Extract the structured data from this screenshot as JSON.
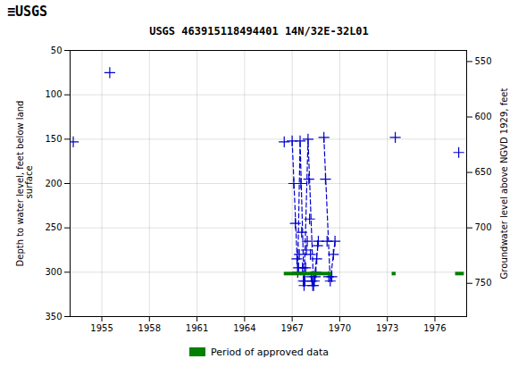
{
  "chart_data": {
    "type": "scatter",
    "title": "USGS 463915118494401 14N/32E-32L01",
    "annotations": [
      "≡USGS"
    ],
    "ylabel": "Depth to water level, feet below land\n surface",
    "y2label": "Groundwater level above NGVD 1929, feet",
    "xlim": [
      1953,
      1978
    ],
    "xticks": [
      1955,
      1958,
      1961,
      1964,
      1967,
      1970,
      1973,
      1976
    ],
    "ylim": [
      50,
      350
    ],
    "yticks": [
      50,
      100,
      150,
      200,
      250,
      300,
      350
    ],
    "y2lim": [
      540,
      780
    ],
    "y2ticks": [
      550,
      600,
      650,
      700,
      750
    ],
    "grid": true,
    "legend": "bottom",
    "series": [
      {
        "type": "scatter",
        "color": "#0000cc",
        "marker": "plus",
        "x": [
          1955.5,
          1953.2,
          1966.5,
          1967.0,
          1967.1,
          1967.2,
          1967.3,
          1967.35,
          1967.4,
          1967.45,
          1967.5,
          1967.55,
          1967.6,
          1967.65,
          1967.7,
          1967.75,
          1967.8,
          1967.85,
          1967.9,
          1967.95,
          1968.0,
          1968.05,
          1968.1,
          1968.15,
          1968.2,
          1968.25,
          1968.3,
          1968.35,
          1968.4,
          1968.45,
          1968.5,
          1968.55,
          1968.6,
          1968.65,
          1969.0,
          1969.1,
          1969.2,
          1969.3,
          1969.4,
          1969.5,
          1969.6,
          1969.7,
          1973.5,
          1977.5
        ],
        "values": [
          75,
          153,
          153,
          152,
          200,
          245,
          285,
          300,
          295,
          280,
          152,
          200,
          255,
          295,
          310,
          315,
          310,
          295,
          275,
          265,
          150,
          195,
          240,
          280,
          305,
          310,
          315,
          315,
          310,
          305,
          300,
          285,
          270,
          265,
          148,
          195,
          265,
          305,
          310,
          305,
          280,
          265,
          148,
          165
        ]
      },
      {
        "type": "line",
        "color": "#0000cc",
        "line_style": "dashed",
        "x": [
          1967.0,
          1967.35,
          1967.5,
          1967.75,
          1968.0,
          1968.35,
          1968.65
        ],
        "values": [
          152,
          300,
          152,
          315,
          150,
          315,
          265
        ]
      },
      {
        "type": "line",
        "color": "#0000cc",
        "line_style": "dashed",
        "x": [
          1969.0,
          1969.4,
          1969.7
        ],
        "values": [
          148,
          310,
          265
        ]
      },
      {
        "type": "range",
        "name": "Period of approved data",
        "color": "#008000",
        "x_ranges": [
          [
            1966.5,
            1969.5
          ],
          [
            1973.3,
            1973.55
          ],
          [
            1977.3,
            1977.85
          ]
        ],
        "y_range": [
          300,
          304
        ]
      }
    ]
  }
}
